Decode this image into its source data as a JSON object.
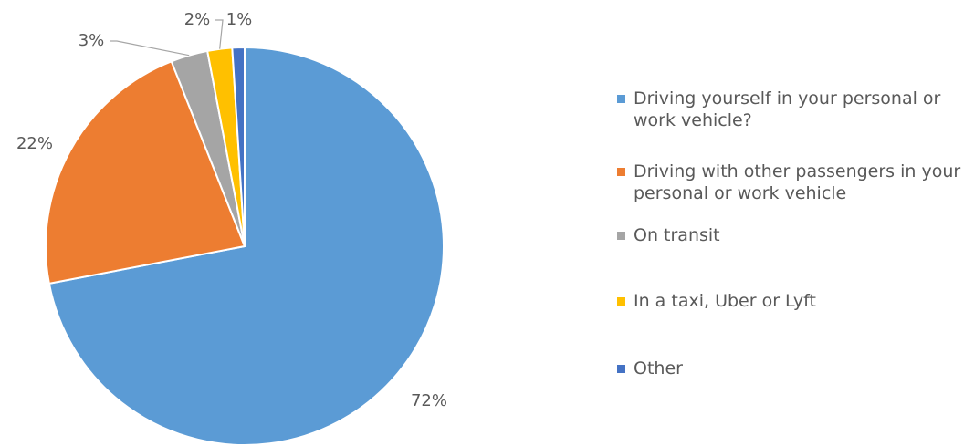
{
  "chart_data": {
    "type": "pie",
    "categories": [
      "Driving yourself in your personal or work vehicle?",
      "Driving with other passengers in your personal or work vehicle",
      "On transit",
      "In a taxi, Uber or Lyft",
      "Other"
    ],
    "values": [
      72,
      22,
      3,
      2,
      1
    ],
    "value_labels": [
      "72%",
      "22%",
      "3%",
      "2%",
      "1%"
    ],
    "colors": [
      "#5b9bd5",
      "#ed7d31",
      "#a5a5a5",
      "#ffc000",
      "#4472c4"
    ],
    "legend": "right"
  }
}
